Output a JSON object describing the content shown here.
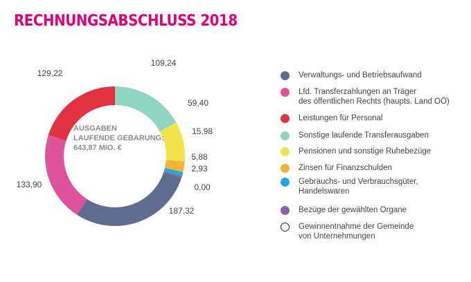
{
  "chart_data": {
    "type": "donut",
    "title": "RECHNUNGSABSCHLUSS 2018",
    "center_label": [
      "AUSGABEN",
      "LAUFENDE GEBARUNG:",
      "643,87 MIO. €"
    ],
    "categories": [
      "Verwaltungs- und Betriebsaufwand",
      "Lfd. Transferzahlungen an Träger\ndes öffentlichen Rechts (haupts. Land OÖ)",
      "Leistungen für Personal",
      "Sonstige laufende Transferausgaben",
      "Pensionen und sonstige Ruhebezüge",
      "Zinsen für Finanzschulden",
      "Gebrauchs- und Verbrauchsgüter,\nHandelswaren",
      "Bezüge der gewählten Organe",
      "Gewinnentnahme der Gemeinde\nvon Unternehmungen"
    ],
    "values": [
      187.32,
      133.9,
      129.22,
      109.24,
      59.4,
      15.98,
      5.88,
      2.93,
      0.0
    ],
    "value_labels": [
      "187,32",
      "133,90",
      "129,22",
      "109,24",
      "59,40",
      "15,98",
      "5,88",
      "2,93",
      "0,00"
    ],
    "colors": [
      "#5f6c91",
      "#e0529b",
      "#e2323f",
      "#90d5c2",
      "#f1e34c",
      "#f5b335",
      "#1ea8e0",
      "#8b63a8",
      "#ffffff"
    ]
  }
}
